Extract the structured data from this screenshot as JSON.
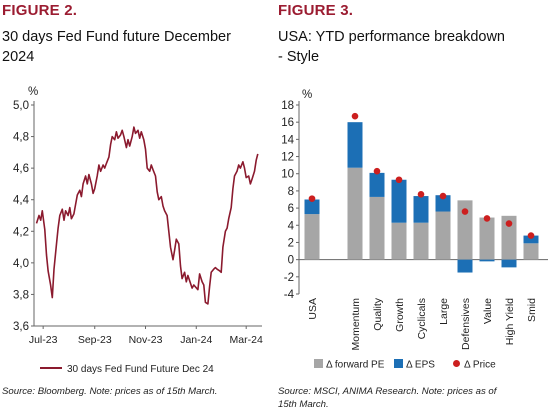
{
  "figures": [
    {
      "label": "FIGURE 2.",
      "title_lines": [
        "30 days Fed Fund future December",
        "2024"
      ],
      "source": "Source: Bloomberg. Note: prices as of 15th March.",
      "colors": {
        "line": "#8b1a2e",
        "label": "#9b1c31"
      }
    },
    {
      "label": "FIGURE 3.",
      "title_lines": [
        "USA: YTD performance breakdown",
        "- Style"
      ],
      "source_lines": [
        "Source: MSCI, ANIMA Research. Note: prices as of",
        "15th March."
      ],
      "colors": {
        "forward_pe": "#a6a6a6",
        "eps": "#1c6fb5",
        "price": "#cc1f1f",
        "label": "#9b1c31"
      }
    }
  ],
  "chart_data": [
    {
      "type": "line",
      "title": "30 days Fed Fund future December 2024",
      "ylabel": "%",
      "ylim": [
        3.6,
        5.0
      ],
      "yticks": [
        "5,0",
        "4,8",
        "4,6",
        "4,4",
        "4,2",
        "4,0",
        "3,8",
        "3,6"
      ],
      "ytick_values": [
        5.0,
        4.8,
        4.6,
        4.4,
        4.2,
        4.0,
        3.8,
        3.6
      ],
      "xticks": [
        "Jul-23",
        "Sep-23",
        "Nov-23",
        "Jan-24",
        "Mar-24"
      ],
      "xtick_dates": [
        "2023-07-01",
        "2023-09-01",
        "2023-11-01",
        "2024-01-01",
        "2024-03-01"
      ],
      "xlim": [
        "2023-06-20",
        "2024-03-20"
      ],
      "legend": "top-inside-bottom",
      "series": [
        {
          "name": "30 days Fed Fund Future Dec 24",
          "points": [
            [
              "2023-06-23",
              4.25
            ],
            [
              "2023-06-26",
              4.3
            ],
            [
              "2023-06-28",
              4.27
            ],
            [
              "2023-06-30",
              4.33
            ],
            [
              "2023-07-03",
              4.21
            ],
            [
              "2023-07-05",
              4.05
            ],
            [
              "2023-07-07",
              3.95
            ],
            [
              "2023-07-10",
              3.86
            ],
            [
              "2023-07-12",
              3.78
            ],
            [
              "2023-07-14",
              3.96
            ],
            [
              "2023-07-17",
              4.12
            ],
            [
              "2023-07-19",
              4.22
            ],
            [
              "2023-07-21",
              4.3
            ],
            [
              "2023-07-24",
              4.34
            ],
            [
              "2023-07-26",
              4.27
            ],
            [
              "2023-07-28",
              4.33
            ],
            [
              "2023-07-31",
              4.3
            ],
            [
              "2023-08-02",
              4.35
            ],
            [
              "2023-08-04",
              4.28
            ],
            [
              "2023-08-07",
              4.31
            ],
            [
              "2023-08-09",
              4.37
            ],
            [
              "2023-08-11",
              4.43
            ],
            [
              "2023-08-14",
              4.46
            ],
            [
              "2023-08-16",
              4.42
            ],
            [
              "2023-08-18",
              4.5
            ],
            [
              "2023-08-21",
              4.55
            ],
            [
              "2023-08-23",
              4.5
            ],
            [
              "2023-08-25",
              4.56
            ],
            [
              "2023-08-28",
              4.5
            ],
            [
              "2023-08-30",
              4.44
            ],
            [
              "2023-09-01",
              4.47
            ],
            [
              "2023-09-04",
              4.55
            ],
            [
              "2023-09-06",
              4.62
            ],
            [
              "2023-09-08",
              4.58
            ],
            [
              "2023-09-11",
              4.62
            ],
            [
              "2023-09-13",
              4.6
            ],
            [
              "2023-09-15",
              4.63
            ],
            [
              "2023-09-18",
              4.67
            ],
            [
              "2023-09-20",
              4.75
            ],
            [
              "2023-09-22",
              4.8
            ],
            [
              "2023-09-25",
              4.78
            ],
            [
              "2023-09-27",
              4.83
            ],
            [
              "2023-09-29",
              4.79
            ],
            [
              "2023-10-02",
              4.81
            ],
            [
              "2023-10-04",
              4.84
            ],
            [
              "2023-10-06",
              4.8
            ],
            [
              "2023-10-09",
              4.73
            ],
            [
              "2023-10-11",
              4.78
            ],
            [
              "2023-10-13",
              4.74
            ],
            [
              "2023-10-16",
              4.8
            ],
            [
              "2023-10-18",
              4.86
            ],
            [
              "2023-10-20",
              4.82
            ],
            [
              "2023-10-23",
              4.84
            ],
            [
              "2023-10-25",
              4.79
            ],
            [
              "2023-10-27",
              4.83
            ],
            [
              "2023-10-30",
              4.78
            ],
            [
              "2023-11-01",
              4.72
            ],
            [
              "2023-11-03",
              4.6
            ],
            [
              "2023-11-06",
              4.58
            ],
            [
              "2023-11-08",
              4.62
            ],
            [
              "2023-11-10",
              4.59
            ],
            [
              "2023-11-13",
              4.55
            ],
            [
              "2023-11-15",
              4.45
            ],
            [
              "2023-11-17",
              4.4
            ],
            [
              "2023-11-20",
              4.42
            ],
            [
              "2023-11-22",
              4.36
            ],
            [
              "2023-11-24",
              4.33
            ],
            [
              "2023-11-27",
              4.3
            ],
            [
              "2023-11-29",
              4.2
            ],
            [
              "2023-12-01",
              4.1
            ],
            [
              "2023-12-04",
              4.02
            ],
            [
              "2023-12-06",
              4.08
            ],
            [
              "2023-12-08",
              4.15
            ],
            [
              "2023-12-11",
              4.12
            ],
            [
              "2023-12-13",
              3.98
            ],
            [
              "2023-12-15",
              3.9
            ],
            [
              "2023-12-18",
              3.94
            ],
            [
              "2023-12-20",
              3.88
            ],
            [
              "2023-12-22",
              3.92
            ],
            [
              "2023-12-27",
              3.84
            ],
            [
              "2023-12-29",
              3.86
            ],
            [
              "2024-01-03",
              3.83
            ],
            [
              "2024-01-05",
              3.93
            ],
            [
              "2024-01-08",
              3.88
            ],
            [
              "2024-01-10",
              3.86
            ],
            [
              "2024-01-12",
              3.75
            ],
            [
              "2024-01-15",
              3.74
            ],
            [
              "2024-01-17",
              3.85
            ],
            [
              "2024-01-19",
              3.94
            ],
            [
              "2024-01-22",
              3.96
            ],
            [
              "2024-01-24",
              3.97
            ],
            [
              "2024-01-26",
              3.96
            ],
            [
              "2024-01-29",
              3.95
            ],
            [
              "2024-01-31",
              3.94
            ],
            [
              "2024-02-02",
              4.1
            ],
            [
              "2024-02-05",
              4.2
            ],
            [
              "2024-02-07",
              4.22
            ],
            [
              "2024-02-09",
              4.28
            ],
            [
              "2024-02-12",
              4.35
            ],
            [
              "2024-02-14",
              4.47
            ],
            [
              "2024-02-16",
              4.55
            ],
            [
              "2024-02-19",
              4.58
            ],
            [
              "2024-02-21",
              4.62
            ],
            [
              "2024-02-23",
              4.6
            ],
            [
              "2024-02-26",
              4.64
            ],
            [
              "2024-02-28",
              4.6
            ],
            [
              "2024-03-01",
              4.54
            ],
            [
              "2024-03-04",
              4.55
            ],
            [
              "2024-03-06",
              4.5
            ],
            [
              "2024-03-08",
              4.53
            ],
            [
              "2024-03-11",
              4.58
            ],
            [
              "2024-03-13",
              4.65
            ],
            [
              "2024-03-15",
              4.69
            ]
          ]
        }
      ]
    },
    {
      "type": "bar",
      "subtype": "stacked-with-markers",
      "title": "USA: YTD performance breakdown - Style",
      "ylabel": "%",
      "ylim": [
        -4,
        18
      ],
      "yticks": [
        18,
        16,
        14,
        12,
        10,
        8,
        6,
        4,
        2,
        0,
        -2,
        -4
      ],
      "categories": [
        "USA",
        "Momentum",
        "Quality",
        "Growth",
        "Cyclicals",
        "Large",
        "Defensives",
        "Value",
        "High Yield",
        "Smid"
      ],
      "legend": "bottom",
      "series": [
        {
          "name": "Δ forward PE",
          "values": [
            5.3,
            10.7,
            7.3,
            4.3,
            4.3,
            5.6,
            6.9,
            4.9,
            5.1,
            1.9
          ]
        },
        {
          "name": "Δ EPS",
          "values": [
            1.7,
            5.3,
            2.8,
            5.0,
            3.1,
            1.9,
            -1.5,
            -0.2,
            -0.9,
            0.9
          ]
        },
        {
          "name": "Δ Price",
          "values": [
            7.1,
            16.7,
            10.3,
            9.3,
            7.6,
            7.4,
            5.6,
            4.8,
            4.2,
            2.8
          ]
        }
      ]
    }
  ]
}
